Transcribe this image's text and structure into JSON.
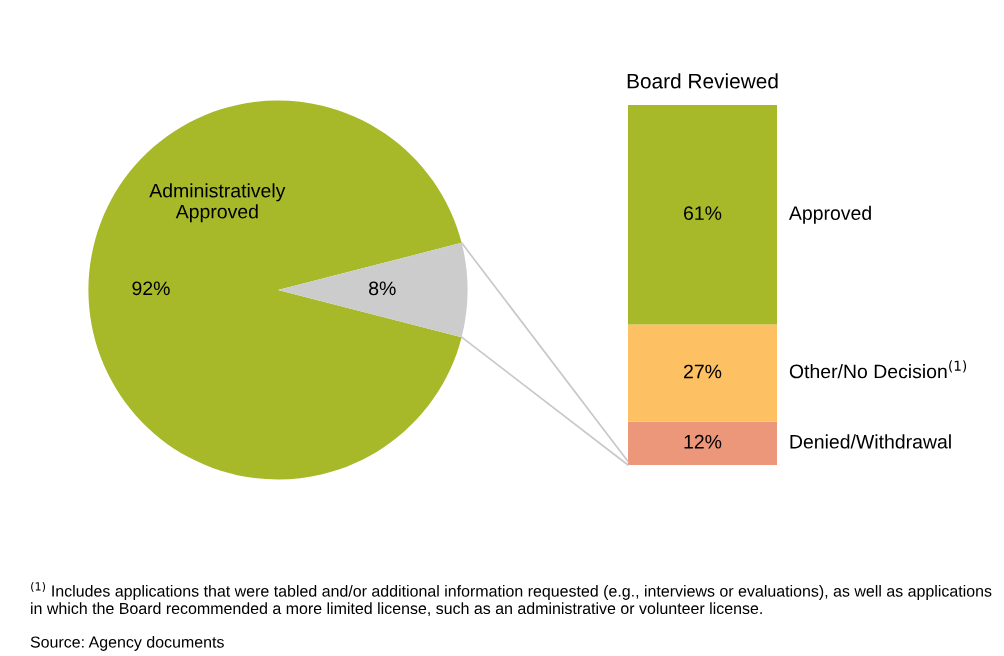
{
  "chart_data": [
    {
      "type": "pie",
      "categories": [
        "Administratively Approved",
        null
      ],
      "values": [
        92,
        8
      ],
      "colors": [
        "#a7b829",
        "#cccccc"
      ],
      "value_labels": [
        "92%",
        "8%"
      ]
    },
    {
      "type": "bar",
      "stacked": true,
      "title": "Board Reviewed",
      "categories": [
        null
      ],
      "legend": false,
      "series": [
        {
          "name": "Denied/Withdrawal",
          "color": "#ec967a",
          "values": [
            12
          ],
          "value_labels": [
            "12%"
          ]
        },
        {
          "name": "Other/No Decision$^{(1)}$",
          "color": "#fdc063",
          "values": [
            27
          ],
          "value_labels": [
            "27%"
          ]
        },
        {
          "name": "Approved",
          "color": "#a7b829",
          "values": [
            61
          ],
          "value_labels": [
            "61%"
          ]
        }
      ],
      "annotations": [
        "$^{(1)}$ Includes applications that were tabled and/or additional information requested (e.g., interviews or evaluations), as well as applications in which the Board recommended a more limited license, such as an administrative or volunteer license.",
        "Source: Agency documents"
      ]
    }
  ]
}
